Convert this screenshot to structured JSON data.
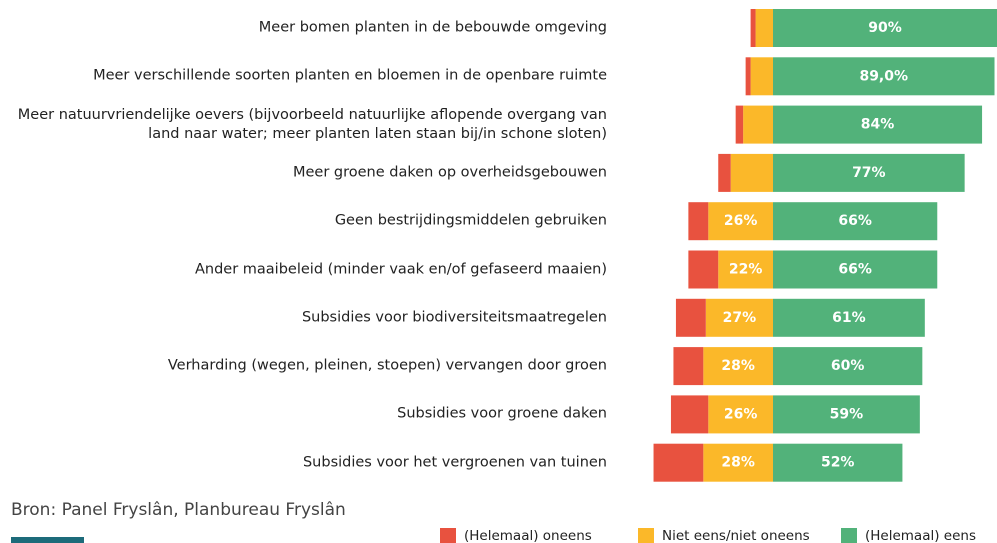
{
  "chart_data": {
    "type": "diverging_bar",
    "source": "Bron: Panel Fryslân, Planbureau Fryslân",
    "categories": [
      "Meer bomen planten in de bebouwde omgeving",
      "Meer verschillende soorten planten en bloemen in de openbare ruimte",
      "Meer natuurvriendelijke oevers (bijvoorbeeld natuurlijke aflopende overgang van\nland naar water; meer planten laten staan bij/in schone sloten)",
      "Meer groene daken op overheidsgebouwen",
      "Geen bestrijdingsmiddelen gebruiken",
      "Ander maaibeleid (minder vaak en/of gefaseerd maaien)",
      "Subsidies voor biodiversiteitsmaatregelen",
      "Verharding (wegen, pleinen, stoepen) vervangen door groen",
      "Subsidies voor groene daken",
      "Subsidies voor het vergroenen van tuinen"
    ],
    "series": [
      {
        "name": "(Helemaal) oneens",
        "color": "#e8523f",
        "side": "left",
        "values": [
          2,
          2,
          3,
          5,
          8,
          12,
          12,
          12,
          15,
          20
        ],
        "value_labels": [
          null,
          null,
          null,
          null,
          null,
          null,
          null,
          null,
          null,
          null
        ]
      },
      {
        "name": "Niet eens/niet oneens",
        "color": "#fbb829",
        "side": "left",
        "values": [
          7,
          9,
          12,
          17,
          26,
          22,
          27,
          28,
          26,
          28
        ],
        "value_labels": [
          null,
          null,
          null,
          null,
          "26%",
          "22%",
          "27%",
          "28%",
          "26%",
          "28%"
        ]
      },
      {
        "name": "(Helemaal) eens",
        "color": "#52b27a",
        "side": "right",
        "values": [
          90,
          89,
          84,
          77,
          66,
          66,
          61,
          60,
          59,
          52
        ],
        "value_labels": [
          "90%",
          "89,0%",
          "84%",
          "77%",
          "66%",
          "66%",
          "61%",
          "60%",
          "59%",
          "52%"
        ]
      }
    ]
  }
}
